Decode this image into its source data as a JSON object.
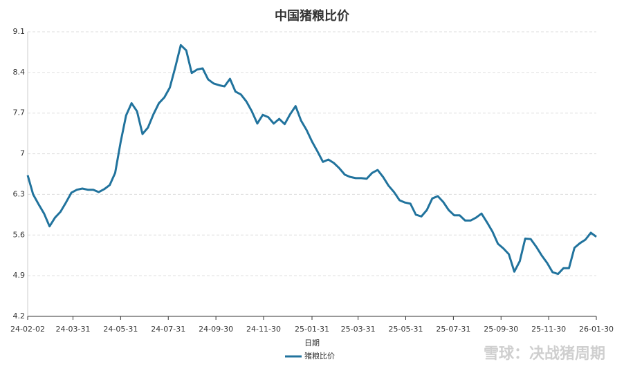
{
  "chart_data": {
    "type": "line",
    "title": "中国猪粮比价",
    "x_label": "日期",
    "watermark": "雪球：决战猪周期",
    "x": [
      "24-02-02",
      "24-02-09",
      "24-02-16",
      "24-02-23",
      "24-03-01",
      "24-03-08",
      "24-03-15",
      "24-03-22",
      "24-03-29",
      "24-04-05",
      "24-04-12",
      "24-04-19",
      "24-04-26",
      "24-05-03",
      "24-05-10",
      "24-05-17",
      "24-05-24",
      "24-05-31",
      "24-06-07",
      "24-06-14",
      "24-06-21",
      "24-06-28",
      "24-07-05",
      "24-07-12",
      "24-07-19",
      "24-07-26",
      "24-08-02",
      "24-08-09",
      "24-08-16",
      "24-08-23",
      "24-08-30",
      "24-09-06",
      "24-09-13",
      "24-09-20",
      "24-09-27",
      "24-10-04",
      "24-10-11",
      "24-10-18",
      "24-10-25",
      "24-11-01",
      "24-11-08",
      "24-11-15",
      "24-11-22",
      "24-11-29",
      "24-12-06",
      "24-12-13",
      "24-12-20",
      "24-12-27",
      "25-01-03",
      "25-01-10",
      "25-01-17",
      "25-01-24",
      "25-01-31",
      "25-02-07",
      "25-02-14",
      "25-02-21",
      "25-02-28",
      "25-03-07",
      "25-03-14",
      "25-03-21",
      "25-03-28",
      "25-04-04",
      "25-04-11",
      "25-04-18",
      "25-04-25",
      "25-05-02",
      "25-05-09",
      "25-05-16",
      "25-05-23",
      "25-05-30",
      "25-06-06",
      "25-06-13",
      "25-06-20",
      "25-06-27",
      "25-07-04",
      "25-07-11",
      "25-07-18",
      "25-07-25",
      "25-08-01",
      "25-08-08",
      "25-08-15",
      "25-08-22",
      "25-08-29",
      "25-09-05",
      "25-09-12",
      "25-09-19",
      "25-09-26",
      "25-10-03",
      "25-10-10",
      "25-10-17",
      "25-10-24",
      "25-10-31",
      "25-11-07",
      "25-11-14",
      "25-11-21",
      "25-11-28",
      "25-12-05",
      "25-12-12",
      "25-12-19",
      "25-12-26",
      "26-01-02",
      "26-01-09",
      "26-01-16",
      "26-01-23",
      "26-01-30"
    ],
    "series": [
      {
        "name": "猪粮比价",
        "color": "#21739d",
        "values": [
          6.63,
          6.3,
          6.13,
          5.97,
          5.75,
          5.9,
          6.0,
          6.16,
          6.33,
          6.38,
          6.4,
          6.38,
          6.38,
          6.34,
          6.39,
          6.46,
          6.67,
          7.2,
          7.66,
          7.87,
          7.73,
          7.34,
          7.45,
          7.68,
          7.87,
          7.97,
          8.14,
          8.49,
          8.87,
          8.78,
          8.39,
          8.45,
          8.47,
          8.28,
          8.21,
          8.18,
          8.16,
          8.29,
          8.07,
          8.02,
          7.9,
          7.73,
          7.52,
          7.67,
          7.63,
          7.52,
          7.6,
          7.51,
          7.68,
          7.82,
          7.57,
          7.41,
          7.21,
          7.04,
          6.86,
          6.9,
          6.84,
          6.75,
          6.64,
          6.6,
          6.58,
          6.58,
          6.57,
          6.67,
          6.72,
          6.6,
          6.45,
          6.34,
          6.2,
          6.16,
          6.14,
          5.95,
          5.92,
          6.03,
          6.23,
          6.27,
          6.17,
          6.03,
          5.94,
          5.94,
          5.85,
          5.85,
          5.9,
          5.97,
          5.82,
          5.66,
          5.45,
          5.37,
          5.27,
          4.97,
          5.15,
          5.54,
          5.53,
          5.4,
          5.25,
          5.12,
          4.96,
          4.93,
          5.03,
          5.03,
          5.38,
          5.46,
          5.52,
          5.64,
          5.57
        ]
      }
    ],
    "xlim": [
      "24-02-02",
      "26-01-30"
    ],
    "xticks": [
      "24-02-02",
      "24-03-31",
      "24-05-31",
      "24-07-31",
      "24-09-30",
      "24-11-30",
      "25-01-31",
      "25-03-31",
      "25-05-31",
      "25-07-31",
      "25-09-30",
      "25-11-30",
      "26-01-30"
    ],
    "ylim": [
      4.2,
      9.1
    ],
    "yticks": [
      4.2,
      4.9,
      5.6,
      6.3,
      7,
      7.7,
      8.4,
      9.1
    ],
    "grid": true
  }
}
